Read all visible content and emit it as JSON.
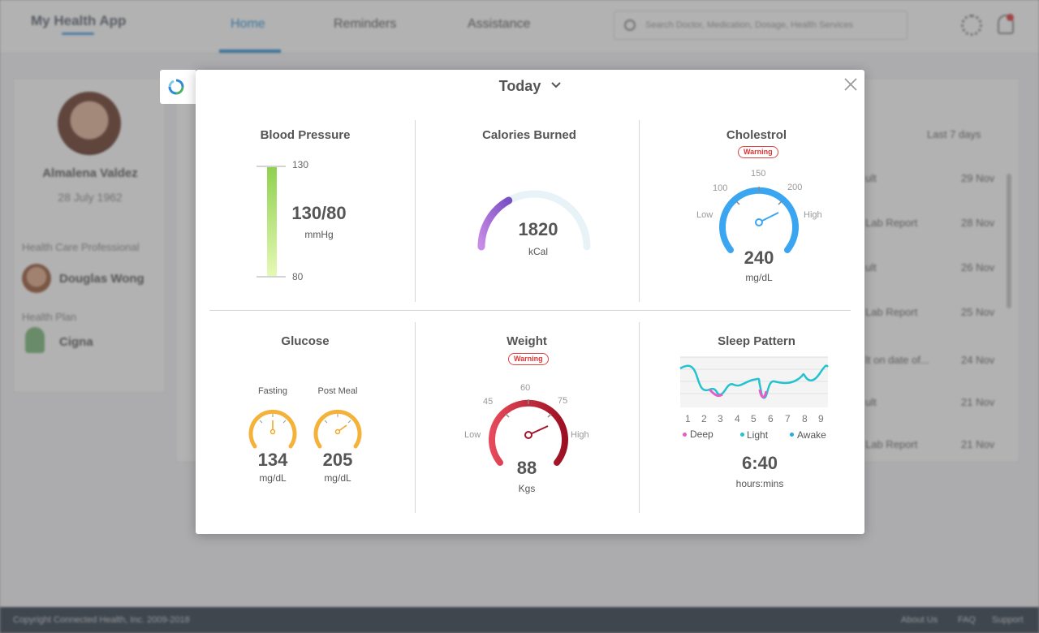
{
  "app": {
    "title": "My Health App",
    "nav_tabs": [
      "Home",
      "Reminders",
      "Assistance"
    ],
    "search_placeholder": "Search Doctor, Medication, Dosage, Health Services",
    "profile": {
      "name": "Almalena Valdez",
      "dob": "28 July 1962",
      "care_section": "Health Care Professional",
      "doctor": "Douglas Wong",
      "plan_section": "Health Plan",
      "plan": "Cigna"
    },
    "list_rows": [
      {
        "title": "ult",
        "date": "29 Nov"
      },
      {
        "title": "Lab Report",
        "date": "28 Nov"
      },
      {
        "title": "ult",
        "date": "26 Nov"
      },
      {
        "title": "Lab Report",
        "date": "25 Nov"
      },
      {
        "title": "lt on date of...",
        "date": "24 Nov"
      },
      {
        "title": "ult",
        "date": "21 Nov"
      },
      {
        "title": "Lab Report",
        "date": "21 Nov"
      }
    ],
    "sort_label": "Last 7 days",
    "footer": {
      "copyright": "Copyright Connected Health, Inc. 2009-2018",
      "links": [
        "About Us",
        "FAQ",
        "Support"
      ]
    }
  },
  "modal": {
    "period": "Today",
    "blood_pressure": {
      "title": "Blood Pressure",
      "value": "130/80",
      "unit": "mmHg",
      "high_label": "130",
      "low_label": "80",
      "colors": {
        "top": "#8fd14f",
        "bottom": "#e6f9b4"
      }
    },
    "calories": {
      "title": "Calories Burned",
      "value": "1820",
      "unit": "kCal",
      "fraction": 0.34,
      "colors": {
        "start": "#c98be6",
        "end": "#7a4fc4",
        "track": "#e8f3f8"
      }
    },
    "cholesterol": {
      "title": "Cholestrol",
      "badge": "Warning",
      "value": "240",
      "unit": "mg/dL",
      "ticks": [
        "100",
        "150",
        "200"
      ],
      "low": "Low",
      "high": "High",
      "color": "#3aa5f0"
    },
    "glucose": {
      "title": "Glucose",
      "fasting_label": "Fasting",
      "fasting_value": "134",
      "post_meal_label": "Post Meal",
      "post_meal_value": "205",
      "unit": "mg/dL",
      "color": "#f5b23a"
    },
    "weight": {
      "title": "Weight",
      "badge": "Warning",
      "value": "88",
      "unit": "Kgs",
      "ticks": [
        "45",
        "60",
        "75"
      ],
      "low": "Low",
      "high": "High",
      "colors": {
        "start": "#e64a5a",
        "end": "#9c0f22"
      }
    },
    "sleep": {
      "title": "Sleep Pattern",
      "x_labels": [
        "1",
        "2",
        "3",
        "4",
        "5",
        "6",
        "7",
        "8",
        "9"
      ],
      "legend": [
        {
          "label": "Deep",
          "color": "#e05fc8"
        },
        {
          "label": "Light",
          "color": "#22c3cf"
        },
        {
          "label": "Awake",
          "color": "#2aa8e6"
        }
      ],
      "value": "6:40",
      "unit": "hours:mins"
    }
  }
}
